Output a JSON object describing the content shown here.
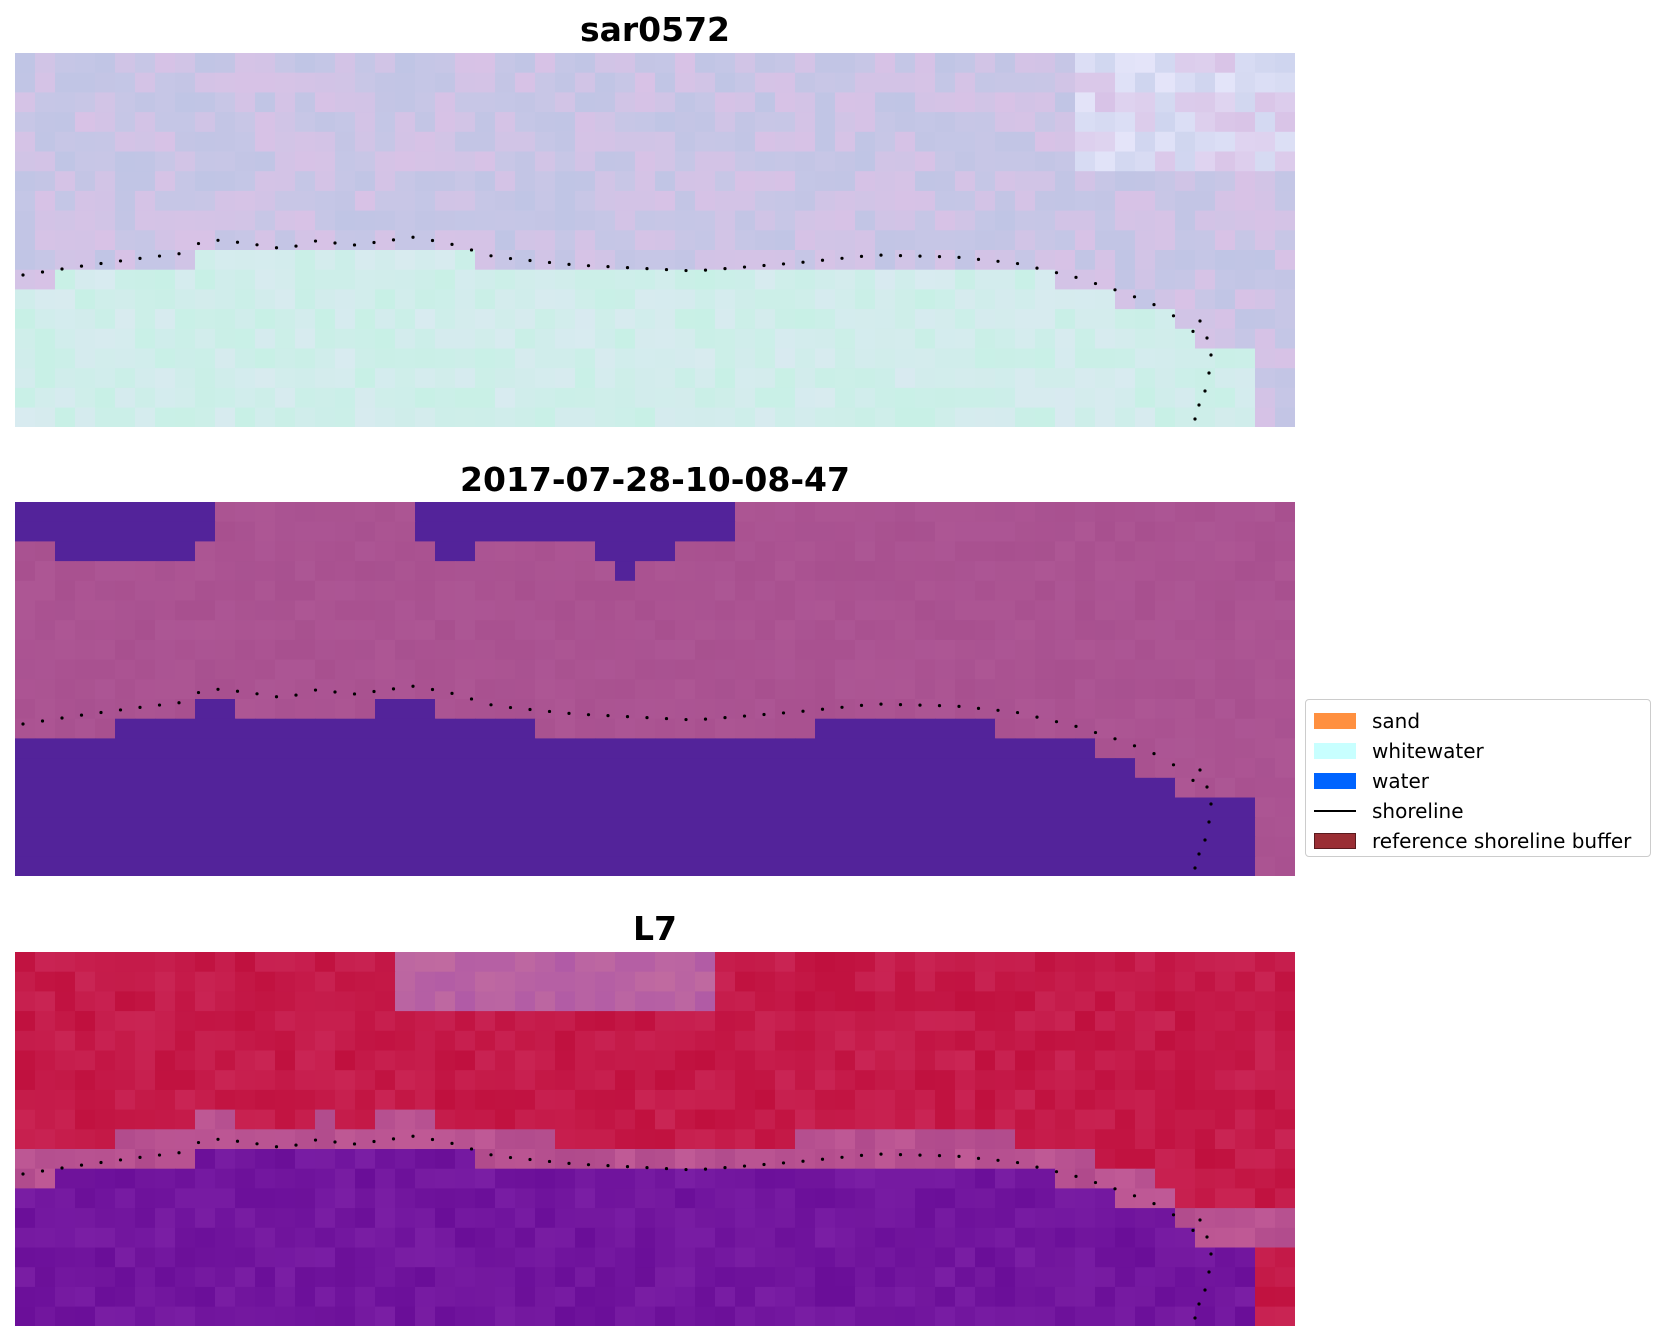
{
  "panels": [
    {
      "title": "sar0572",
      "style": "sar"
    },
    {
      "title": "2017-07-28-10-08-47",
      "style": "classified"
    },
    {
      "title": "L7",
      "style": "l7"
    }
  ],
  "legend": {
    "items": [
      {
        "label": "sand",
        "color": "#ff9040",
        "kind": "patch"
      },
      {
        "label": "whitewater",
        "color": "#c8ffff",
        "kind": "patch"
      },
      {
        "label": "water",
        "color": "#0064ff",
        "kind": "patch"
      },
      {
        "label": "shoreline",
        "color": "#000000",
        "kind": "line"
      },
      {
        "label": "reference shoreline buffer",
        "color": "#9a2e34",
        "kind": "patch"
      }
    ]
  },
  "colors": {
    "classified_land": "#a95390",
    "classified_water": "#53239a",
    "shoreline_dots": "#000000"
  }
}
